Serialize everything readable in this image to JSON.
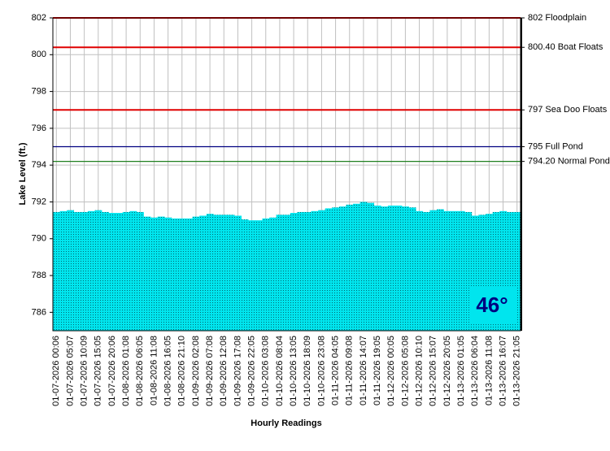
{
  "chart_data": {
    "type": "bar",
    "y_label": "Lake Level (ft.)",
    "x_label": "Hourly Readings",
    "categories": [
      "01-07-2026 00:06",
      null,
      "01-07-2026 05:07",
      null,
      "01-07-2026 10:09",
      null,
      "01-07-2026 15:05",
      null,
      "01-07-2026 20:06",
      null,
      "01-08-2026 01:08",
      null,
      "01-08-2026 06:05",
      null,
      "01-08-2026 11:08",
      null,
      "01-08-2026 16:05",
      null,
      "01-08-2026 21:10",
      null,
      "01-09-2026 02:08",
      null,
      "01-09-2026 07:08",
      null,
      "01-09-2026 12:08",
      null,
      "01-09-2026 17:08",
      null,
      "01-09-2026 22:05",
      null,
      "01-10-2026 03:08",
      null,
      "01-10-2026 08:04",
      null,
      "01-10-2026 13:05",
      null,
      "01-10-2026 18:09",
      null,
      "01-10-2026 23:08",
      null,
      "01-11-2026 04:05",
      null,
      "01-11-2026 09:08",
      null,
      "01-11-2026 14:07",
      null,
      "01-11-2026 19:05",
      null,
      "01-12-2026 00:05",
      null,
      "01-12-2026 05:08",
      null,
      "01-12-2026 10:10",
      null,
      "01-12-2026 15:07",
      null,
      "01-12-2026 20:05",
      null,
      "01-13-2026 01:05",
      null,
      "01-13-2026 06:04",
      null,
      "01-13-2026 11:08",
      null,
      "01-13-2026 16:07",
      null,
      "01-13-2026 21:05"
    ],
    "values": [
      791.45,
      791.5,
      791.55,
      791.45,
      791.45,
      791.5,
      791.55,
      791.45,
      791.4,
      791.4,
      791.45,
      791.5,
      791.45,
      791.2,
      791.15,
      791.2,
      791.15,
      791.1,
      791.1,
      791.1,
      791.2,
      791.25,
      791.35,
      791.3,
      791.3,
      791.3,
      791.25,
      791.05,
      791.0,
      791.0,
      791.1,
      791.15,
      791.3,
      791.3,
      791.4,
      791.45,
      791.45,
      791.5,
      791.55,
      791.65,
      791.7,
      791.75,
      791.85,
      791.9,
      792.0,
      791.95,
      791.8,
      791.75,
      791.8,
      791.8,
      791.75,
      791.7,
      791.5,
      791.45,
      791.55,
      791.6,
      791.5,
      791.5,
      791.5,
      791.45,
      791.25,
      791.3,
      791.35,
      791.45,
      791.5,
      791.45,
      791.45
    ],
    "color": "#00e5ee",
    "ylim": [
      785,
      802
    ],
    "yticks": [
      786,
      788,
      790,
      792,
      794,
      796,
      798,
      800,
      802
    ],
    "grid": true,
    "reference_lines": [
      {
        "value": 802,
        "label": "802 Floodplain",
        "color": "#e00000"
      },
      {
        "value": 800.4,
        "label": "800.40 Boat Floats",
        "color": "#e00000"
      },
      {
        "value": 797,
        "label": "797 Sea Doo Floats",
        "color": "#e00000"
      },
      {
        "value": 795,
        "label": "795 Full Pond",
        "color": "#000080"
      },
      {
        "value": 794.2,
        "label": "794.20 Normal Pond",
        "color": "#208020"
      }
    ],
    "temperature": "46°"
  }
}
